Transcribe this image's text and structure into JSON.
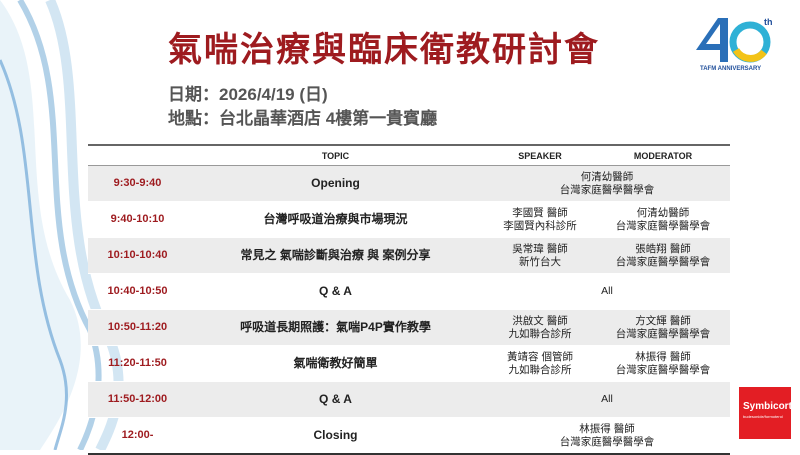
{
  "header": {
    "title": "氣喘治療與臨床衛教研討會",
    "date": "日期：2026/4/19 (日)",
    "venue": "地點：台北晶華酒店 4樓第一貴賓廳"
  },
  "logos": {
    "anniversary": {
      "number": "40",
      "suffix": "th",
      "caption": "TAFM ANNIVERSARY"
    },
    "sponsor": {
      "name": "Symbicort",
      "subtitle": "budesonide/formoterol",
      "color": "#e31e24"
    }
  },
  "colors": {
    "accent": "#9e1b1f",
    "row_shade": "#ececec"
  },
  "table": {
    "headers": {
      "time": "",
      "topic": "TOPIC",
      "speaker": "SPEAKER",
      "moderator": "MODERATOR"
    },
    "rows": [
      {
        "time": "9:30-9:40",
        "topic": "Opening",
        "merged": [
          "何清幼醫師",
          "台灣家庭醫學醫學會"
        ]
      },
      {
        "time": "9:40-10:10",
        "topic": "台灣呼吸道治療與市場現況",
        "speaker": [
          "李國賢 醫師",
          "李國賢內科診所"
        ],
        "moderator": [
          "何清幼醫師",
          "台灣家庭醫學醫學會"
        ]
      },
      {
        "time": "10:10-10:40",
        "topic": "常見之 氣喘診斷與治療 與 案例分享",
        "speaker": [
          "吳常瑋 醫師",
          "新竹台大"
        ],
        "moderator": [
          "張皓翔 醫師",
          "台灣家庭醫學醫學會"
        ]
      },
      {
        "time": "10:40-10:50",
        "topic": "Q & A",
        "merged": [
          "All",
          ""
        ]
      },
      {
        "time": "10:50-11:20",
        "topic": "呼吸道長期照護：氣喘P4P實作教學",
        "speaker": [
          "洪啟文 醫師",
          "九如聯合診所"
        ],
        "moderator": [
          "方文輝 醫師",
          "台灣家庭醫學醫學會"
        ]
      },
      {
        "time": "11:20-11:50",
        "topic": "氣喘衛教好簡單",
        "speaker": [
          "黃靖容 個管師",
          "九如聯合診所"
        ],
        "moderator": [
          "林振得 醫師",
          "台灣家庭醫學醫學會"
        ]
      },
      {
        "time": "11:50-12:00",
        "topic": "Q & A",
        "merged": [
          "All",
          ""
        ]
      },
      {
        "time": "12:00-",
        "topic": "Closing",
        "merged": [
          "林振得 醫師",
          "台灣家庭醫學醫學會"
        ]
      }
    ]
  }
}
